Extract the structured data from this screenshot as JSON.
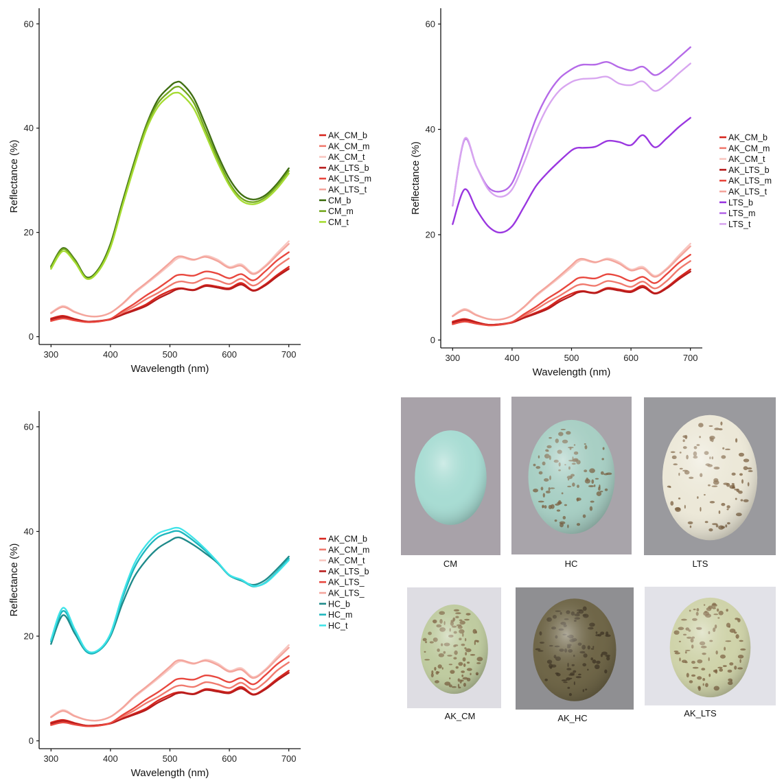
{
  "chart_data": [
    {
      "type": "line",
      "xlabel": "Wavelength (nm)",
      "ylabel": "Reflectance (%)",
      "xlim": [
        280,
        720
      ],
      "ylim": [
        -1.5,
        63
      ],
      "xticks": [
        300,
        400,
        500,
        600,
        700
      ],
      "yticks": [
        0,
        20,
        40,
        60
      ],
      "legend_position": "right",
      "x": [
        300,
        320,
        340,
        360,
        380,
        400,
        420,
        440,
        460,
        480,
        500,
        510,
        520,
        540,
        560,
        580,
        600,
        620,
        640,
        660,
        680,
        700
      ],
      "series": [
        {
          "name": "AK_CM_b",
          "color": "#d7261e",
          "values": [
            3.5,
            4.0,
            3.4,
            2.9,
            3.0,
            3.4,
            4.3,
            5.2,
            6.2,
            7.7,
            8.8,
            9.2,
            9.3,
            9.0,
            9.9,
            9.6,
            9.3,
            10.3,
            8.9,
            10.0,
            11.8,
            13.4
          ]
        },
        {
          "name": "AK_CM_m",
          "color": "#f07a6e",
          "values": [
            3.2,
            3.7,
            3.2,
            2.8,
            2.9,
            3.4,
            4.6,
            5.8,
            7.2,
            8.4,
            9.8,
            10.4,
            10.6,
            10.3,
            11.2,
            10.8,
            10.1,
            11.1,
            9.8,
            11.2,
            13.4,
            15.0
          ]
        },
        {
          "name": "AK_CM_t",
          "color": "#f8c6c0",
          "values": [
            4.6,
            5.9,
            4.8,
            4.0,
            3.9,
            4.6,
            6.2,
            8.3,
            10.1,
            11.9,
            13.8,
            14.8,
            15.2,
            14.7,
            15.5,
            14.8,
            13.4,
            13.9,
            12.2,
            13.6,
            16.0,
            18.3
          ]
        },
        {
          "name": "AK_LTS_b",
          "color": "#b71c1c",
          "values": [
            3.3,
            3.8,
            3.3,
            2.9,
            3.0,
            3.3,
            4.2,
            5.0,
            5.9,
            7.3,
            8.4,
            9.0,
            9.2,
            8.9,
            9.7,
            9.4,
            9.1,
            10.0,
            8.8,
            9.8,
            11.5,
            13.0
          ]
        },
        {
          "name": "AK_LTS_m",
          "color": "#e8473e",
          "values": [
            3.0,
            3.5,
            3.1,
            2.8,
            2.9,
            3.4,
            4.9,
            6.3,
            7.9,
            9.3,
            10.9,
            11.7,
            11.9,
            11.7,
            12.5,
            12.1,
            11.2,
            12.0,
            10.8,
            12.5,
            14.6,
            16.2
          ]
        },
        {
          "name": "AK_LTS_t",
          "color": "#f4a59c",
          "values": [
            4.5,
            5.7,
            4.7,
            4.0,
            3.9,
            4.6,
            6.3,
            8.5,
            10.3,
            12.2,
            14.2,
            15.2,
            15.4,
            14.8,
            15.3,
            14.5,
            13.2,
            13.6,
            12.0,
            13.4,
            15.6,
            17.8
          ]
        },
        {
          "name": "CM_b",
          "color": "#3f6e12",
          "values": [
            13.5,
            17.0,
            14.8,
            11.4,
            13.0,
            17.8,
            25.8,
            33.5,
            40.5,
            45.5,
            48.0,
            48.8,
            48.6,
            45.8,
            40.6,
            35.0,
            30.3,
            27.3,
            26.3,
            27.1,
            29.3,
            32.3
          ]
        },
        {
          "name": "CM_m",
          "color": "#74a81f",
          "values": [
            13.3,
            16.8,
            14.6,
            11.2,
            12.8,
            17.4,
            25.3,
            33.1,
            40.2,
            44.8,
            47.1,
            47.9,
            47.6,
            44.9,
            39.6,
            34.2,
            29.5,
            26.6,
            25.8,
            26.7,
            28.9,
            31.8
          ]
        },
        {
          "name": "CM_t",
          "color": "#a6dc33",
          "values": [
            13.0,
            16.4,
            14.3,
            11.1,
            12.6,
            17.1,
            25.0,
            32.6,
            39.6,
            44.1,
            46.3,
            46.8,
            46.4,
            43.8,
            38.8,
            33.5,
            29.0,
            26.1,
            25.4,
            26.3,
            28.4,
            31.3
          ]
        }
      ]
    },
    {
      "type": "line",
      "xlabel": "Wavelength (nm)",
      "ylabel": "Reflectance (%)",
      "xlim": [
        280,
        720
      ],
      "ylim": [
        -1.5,
        63
      ],
      "xticks": [
        300,
        400,
        500,
        600,
        700
      ],
      "yticks": [
        0,
        20,
        40,
        60
      ],
      "legend_position": "right",
      "x": [
        300,
        320,
        340,
        360,
        380,
        400,
        420,
        440,
        460,
        480,
        500,
        510,
        520,
        540,
        560,
        580,
        600,
        620,
        640,
        660,
        680,
        700
      ],
      "series": [
        {
          "name": "AK_CM_b",
          "color": "#d7261e",
          "values": [
            3.5,
            4.0,
            3.4,
            2.9,
            3.0,
            3.4,
            4.3,
            5.2,
            6.2,
            7.7,
            8.8,
            9.2,
            9.3,
            9.0,
            9.9,
            9.6,
            9.3,
            10.3,
            8.9,
            10.0,
            11.8,
            13.4
          ]
        },
        {
          "name": "AK_CM_m",
          "color": "#f07a6e",
          "values": [
            3.2,
            3.7,
            3.2,
            2.8,
            2.9,
            3.4,
            4.6,
            5.8,
            7.2,
            8.4,
            9.8,
            10.4,
            10.6,
            10.3,
            11.2,
            10.8,
            10.1,
            11.1,
            9.8,
            11.2,
            13.4,
            15.0
          ]
        },
        {
          "name": "AK_CM_t",
          "color": "#f8c6c0",
          "values": [
            4.6,
            5.9,
            4.8,
            4.0,
            3.9,
            4.6,
            6.2,
            8.3,
            10.1,
            11.9,
            13.8,
            14.8,
            15.2,
            14.7,
            15.5,
            14.8,
            13.4,
            13.9,
            12.2,
            13.6,
            16.0,
            18.3
          ]
        },
        {
          "name": "AK_LTS_b",
          "color": "#b71c1c",
          "values": [
            3.3,
            3.8,
            3.3,
            2.9,
            3.0,
            3.3,
            4.2,
            5.0,
            5.9,
            7.3,
            8.4,
            9.0,
            9.2,
            8.9,
            9.7,
            9.4,
            9.1,
            10.0,
            8.8,
            9.8,
            11.5,
            13.0
          ]
        },
        {
          "name": "AK_LTS_m",
          "color": "#e8473e",
          "values": [
            3.0,
            3.5,
            3.1,
            2.8,
            2.9,
            3.4,
            4.9,
            6.3,
            7.9,
            9.3,
            10.9,
            11.7,
            11.9,
            11.7,
            12.5,
            12.1,
            11.2,
            12.0,
            10.8,
            12.5,
            14.6,
            16.2
          ]
        },
        {
          "name": "AK_LTS_t",
          "color": "#f4a59c",
          "values": [
            4.5,
            5.7,
            4.7,
            4.0,
            3.9,
            4.6,
            6.3,
            8.5,
            10.3,
            12.2,
            14.2,
            15.2,
            15.4,
            14.8,
            15.3,
            14.5,
            13.2,
            13.6,
            12.0,
            13.4,
            15.6,
            17.8
          ]
        },
        {
          "name": "LTS_b",
          "color": "#9a37e0",
          "values": [
            22.0,
            28.6,
            24.8,
            21.6,
            20.4,
            21.6,
            25.3,
            29.2,
            31.8,
            34.0,
            36.0,
            36.5,
            36.5,
            36.7,
            37.8,
            37.6,
            37.0,
            38.9,
            36.6,
            38.3,
            40.4,
            42.2
          ]
        },
        {
          "name": "LTS_m",
          "color": "#b56ae8",
          "values": [
            25.5,
            38.0,
            33.0,
            29.0,
            28.2,
            29.8,
            35.6,
            42.0,
            46.6,
            49.7,
            51.4,
            52.0,
            52.3,
            52.3,
            52.8,
            51.8,
            51.2,
            51.9,
            50.3,
            51.6,
            53.6,
            55.6
          ]
        },
        {
          "name": "LTS_t",
          "color": "#d8a6f0",
          "values": [
            25.5,
            38.2,
            33.0,
            28.6,
            27.2,
            28.6,
            33.6,
            39.6,
            44.3,
            47.4,
            49.0,
            49.4,
            49.6,
            49.7,
            50.0,
            48.7,
            48.4,
            49.1,
            47.3,
            48.6,
            50.6,
            52.5
          ]
        }
      ]
    },
    {
      "type": "line",
      "xlabel": "Wavelength (nm)",
      "ylabel": "Reflectance (%)",
      "xlim": [
        280,
        720
      ],
      "ylim": [
        -1.5,
        63
      ],
      "xticks": [
        300,
        400,
        500,
        600,
        700
      ],
      "yticks": [
        0,
        20,
        40,
        60
      ],
      "legend_position": "right",
      "x": [
        300,
        320,
        340,
        360,
        380,
        400,
        420,
        440,
        460,
        480,
        500,
        510,
        520,
        540,
        560,
        580,
        600,
        620,
        640,
        660,
        680,
        700
      ],
      "series": [
        {
          "name": "AK_CM_b",
          "color": "#d7261e",
          "values": [
            3.5,
            4.0,
            3.4,
            2.9,
            3.0,
            3.4,
            4.3,
            5.2,
            6.2,
            7.7,
            8.8,
            9.2,
            9.3,
            9.0,
            9.9,
            9.6,
            9.3,
            10.3,
            8.9,
            10.0,
            11.8,
            13.4
          ]
        },
        {
          "name": "AK_CM_m",
          "color": "#f07a6e",
          "values": [
            3.2,
            3.7,
            3.2,
            2.8,
            2.9,
            3.4,
            4.6,
            5.8,
            7.2,
            8.4,
            9.8,
            10.4,
            10.6,
            10.3,
            11.2,
            10.8,
            10.1,
            11.1,
            9.8,
            11.2,
            13.4,
            15.0
          ]
        },
        {
          "name": "AK_CM_t",
          "color": "#f8c6c0",
          "values": [
            4.6,
            5.9,
            4.8,
            4.0,
            3.9,
            4.6,
            6.2,
            8.3,
            10.1,
            11.9,
            13.8,
            14.8,
            15.2,
            14.7,
            15.5,
            14.8,
            13.4,
            13.9,
            12.2,
            13.6,
            16.0,
            18.3
          ]
        },
        {
          "name": "AK_LTS_b",
          "color": "#b71c1c",
          "values": [
            3.3,
            3.8,
            3.3,
            2.9,
            3.0,
            3.3,
            4.2,
            5.0,
            5.9,
            7.3,
            8.4,
            9.0,
            9.2,
            8.9,
            9.7,
            9.4,
            9.1,
            10.0,
            8.8,
            9.8,
            11.5,
            13.0
          ]
        },
        {
          "name": "AK_LTS_",
          "color": "#e8473e",
          "values": [
            3.0,
            3.5,
            3.1,
            2.8,
            2.9,
            3.4,
            4.9,
            6.3,
            7.9,
            9.3,
            10.9,
            11.7,
            11.9,
            11.7,
            12.5,
            12.1,
            11.2,
            12.0,
            10.8,
            12.5,
            14.6,
            16.2
          ]
        },
        {
          "name": "AK_LTS_",
          "color": "#f4a59c",
          "values": [
            4.5,
            5.7,
            4.7,
            4.0,
            3.9,
            4.6,
            6.3,
            8.5,
            10.3,
            12.2,
            14.2,
            15.2,
            15.4,
            14.8,
            15.3,
            14.5,
            13.2,
            13.6,
            12.0,
            13.4,
            15.6,
            17.8
          ]
        },
        {
          "name": "HC_b",
          "color": "#1f8a8a",
          "values": [
            18.5,
            24.0,
            20.5,
            17.0,
            17.2,
            20.0,
            26.2,
            31.3,
            34.5,
            36.8,
            38.2,
            38.8,
            38.7,
            37.4,
            35.8,
            34.0,
            31.6,
            30.6,
            29.8,
            30.7,
            32.8,
            35.2
          ]
        },
        {
          "name": "HC_m",
          "color": "#1eb6bd",
          "values": [
            19.0,
            24.8,
            21.0,
            17.0,
            17.2,
            20.2,
            27.2,
            33.0,
            36.6,
            38.9,
            39.8,
            40.1,
            39.8,
            38.2,
            36.3,
            34.1,
            31.6,
            30.7,
            29.5,
            30.2,
            32.3,
            34.8
          ]
        },
        {
          "name": "HC_t",
          "color": "#3fe3e8",
          "values": [
            19.3,
            25.4,
            21.3,
            17.3,
            17.4,
            20.5,
            27.8,
            33.8,
            37.4,
            39.6,
            40.4,
            40.7,
            40.4,
            38.7,
            36.6,
            34.2,
            31.7,
            30.8,
            29.6,
            30.1,
            32.1,
            34.5
          ]
        }
      ]
    }
  ],
  "photos": [
    {
      "caption": "CM",
      "bg": "#a8a2a9",
      "egg": "#a8dcd3"
    },
    {
      "caption": "HC",
      "bg": "#a8a4aa",
      "egg": "#a8cfc4"
    },
    {
      "caption": "LTS",
      "bg": "#9a9a9e",
      "egg": "#ece8d8"
    },
    {
      "caption": "AK_CM",
      "bg": "#dedde3",
      "egg": "#bfcba0"
    },
    {
      "caption": "AK_HC",
      "bg": "#8f8f92",
      "egg": "#6f6648"
    },
    {
      "caption": "AK_LTS",
      "bg": "#e2e2e8",
      "egg": "#cfd3aa"
    }
  ]
}
